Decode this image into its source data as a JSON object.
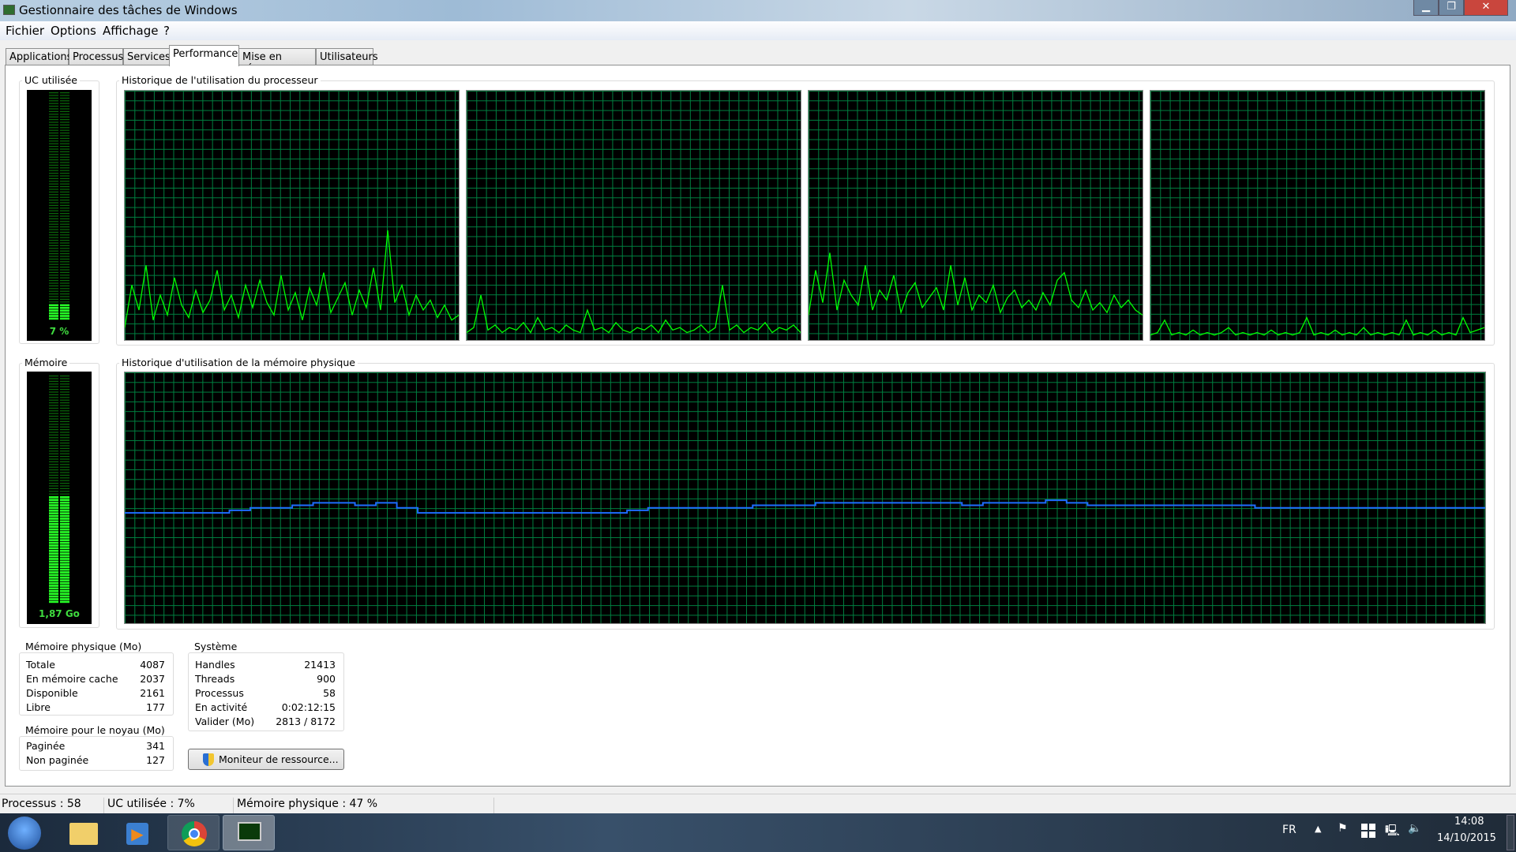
{
  "window": {
    "title": "Gestionnaire des tâches de Windows",
    "controls": [
      "minimize",
      "maximize",
      "close"
    ]
  },
  "menu": [
    "Fichier",
    "Options",
    "Affichage",
    "?"
  ],
  "tabs": [
    {
      "label": "Applications"
    },
    {
      "label": "Processus"
    },
    {
      "label": "Services"
    },
    {
      "label": "Performance",
      "active": true
    },
    {
      "label": "Mise en réseau"
    },
    {
      "label": "Utilisateurs"
    }
  ],
  "cpu": {
    "label": "UC utilisée",
    "value_text": "7 %",
    "percent": 7
  },
  "cpu_history": {
    "label": "Historique de l'utilisation du processeur"
  },
  "memory": {
    "label": "Mémoire",
    "value_text": "1,87 Go",
    "percent": 47
  },
  "memory_history": {
    "label": "Historique d'utilisation de la mémoire physique"
  },
  "chart_data": [
    {
      "type": "line",
      "title": "",
      "ylim": [
        0,
        100
      ],
      "grid": true,
      "color": "#00ff00",
      "values": [
        5,
        22,
        12,
        30,
        8,
        18,
        10,
        25,
        14,
        9,
        20,
        11,
        16,
        28,
        12,
        18,
        9,
        22,
        13,
        24,
        15,
        10,
        26,
        12,
        19,
        8,
        21,
        14,
        27,
        11,
        17,
        23,
        10,
        20,
        13,
        29,
        12,
        44,
        15,
        22,
        10,
        18,
        12,
        16,
        9,
        14,
        8,
        10
      ]
    },
    {
      "type": "line",
      "title": "",
      "ylim": [
        0,
        100
      ],
      "grid": true,
      "color": "#00ff00",
      "values": [
        3,
        5,
        18,
        4,
        6,
        3,
        5,
        4,
        7,
        3,
        9,
        4,
        5,
        3,
        6,
        4,
        3,
        12,
        4,
        5,
        3,
        7,
        4,
        3,
        5,
        4,
        6,
        3,
        8,
        4,
        5,
        3,
        4,
        6,
        3,
        5,
        22,
        4,
        6,
        3,
        5,
        4,
        7,
        3,
        5,
        4,
        6,
        3
      ]
    },
    {
      "type": "line",
      "title": "",
      "ylim": [
        0,
        100
      ],
      "grid": true,
      "color": "#00ff00",
      "values": [
        10,
        28,
        15,
        35,
        12,
        24,
        18,
        14,
        30,
        12,
        20,
        16,
        26,
        11,
        19,
        23,
        13,
        17,
        21,
        12,
        30,
        14,
        25,
        12,
        18,
        15,
        22,
        11,
        17,
        20,
        13,
        16,
        12,
        19,
        14,
        24,
        27,
        16,
        13,
        20,
        12,
        15,
        11,
        18,
        13,
        16,
        12,
        10
      ]
    },
    {
      "type": "line",
      "title": "",
      "ylim": [
        0,
        100
      ],
      "grid": true,
      "color": "#00ff00",
      "values": [
        2,
        3,
        8,
        2,
        3,
        2,
        4,
        2,
        3,
        2,
        3,
        5,
        2,
        3,
        2,
        3,
        2,
        4,
        2,
        3,
        2,
        3,
        9,
        2,
        3,
        2,
        4,
        2,
        3,
        2,
        5,
        2,
        3,
        2,
        3,
        2,
        8,
        2,
        3,
        2,
        4,
        2,
        3,
        2,
        9,
        3,
        4,
        5
      ]
    },
    {
      "type": "line",
      "title": "",
      "ylim": [
        0,
        100
      ],
      "grid": true,
      "color": "#1e6cff",
      "values": [
        44,
        44,
        44,
        44,
        44,
        45,
        46,
        46,
        47,
        48,
        48,
        47,
        48,
        46,
        44,
        44,
        44,
        44,
        44,
        44,
        44,
        44,
        44,
        44,
        45,
        46,
        46,
        46,
        46,
        46,
        47,
        47,
        47,
        48,
        48,
        48,
        48,
        48,
        48,
        48,
        47,
        48,
        48,
        48,
        49,
        48,
        47,
        47,
        47,
        47,
        47,
        47,
        47,
        47,
        46,
        46,
        46,
        46,
        46,
        46,
        46,
        46,
        46,
        46,
        46,
        46
      ]
    }
  ],
  "physical_memory": {
    "title": "Mémoire physique (Mo)",
    "rows": [
      {
        "label": "Totale",
        "value": "4087"
      },
      {
        "label": "En mémoire cache",
        "value": "2037"
      },
      {
        "label": "Disponible",
        "value": "2161"
      },
      {
        "label": "Libre",
        "value": "177"
      }
    ]
  },
  "kernel_memory": {
    "title": "Mémoire pour le noyau (Mo)",
    "rows": [
      {
        "label": "Paginée",
        "value": "341"
      },
      {
        "label": "Non paginée",
        "value": "127"
      }
    ]
  },
  "system": {
    "title": "Système",
    "rows": [
      {
        "label": "Handles",
        "value": "21413"
      },
      {
        "label": "Threads",
        "value": "900"
      },
      {
        "label": "Processus",
        "value": "58"
      },
      {
        "label": "En activité",
        "value": "0:02:12:15"
      },
      {
        "label": "Valider (Mo)",
        "value": "2813 / 8172"
      }
    ]
  },
  "resource_monitor_button": "Moniteur de ressource...",
  "status": {
    "processes": "Processus : 58",
    "cpu": "UC utilisée : 7%",
    "memory": "Mémoire physique : 47 %"
  },
  "taskbar": {
    "language": "FR",
    "time": "14:08",
    "date": "14/10/2015",
    "apps": [
      "start",
      "explorer",
      "media-player",
      "chrome",
      "task-manager"
    ]
  }
}
